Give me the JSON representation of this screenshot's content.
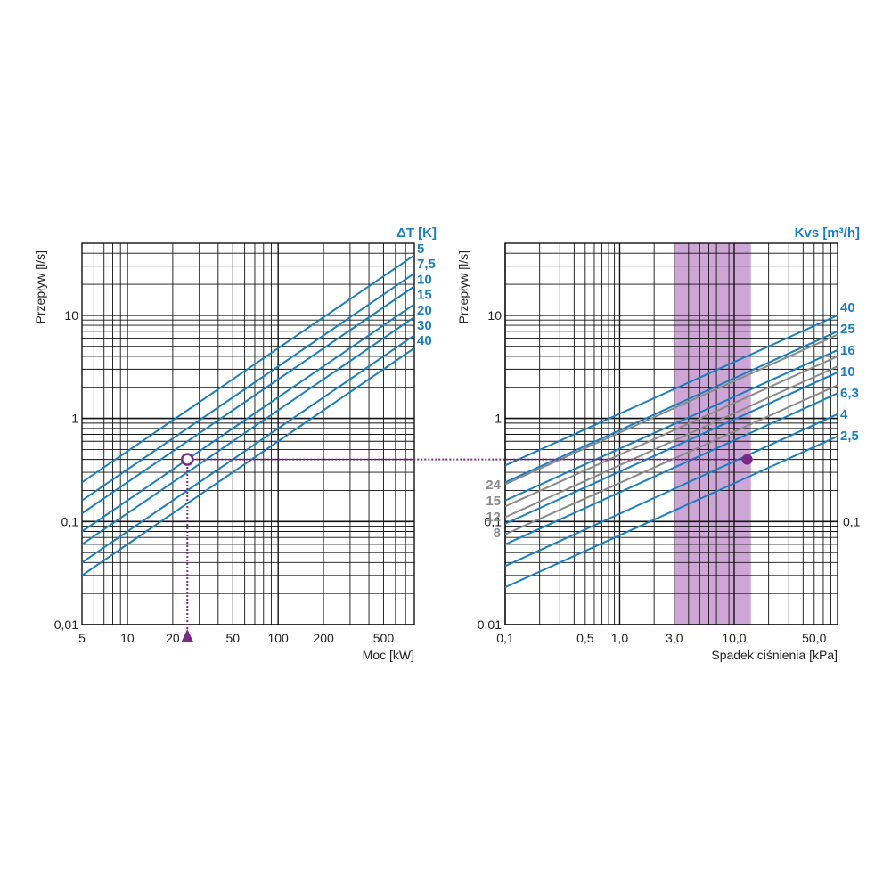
{
  "colors": {
    "blue": "#1a7fc1",
    "gray": "#8a8a8a",
    "purple": "#7a2a86",
    "band": "#c596cf",
    "grid": "#111111"
  },
  "chart_data": [
    {
      "type": "line",
      "scale": "log-log",
      "title": "ΔT [K]",
      "xlabel": "Moc [kW]",
      "ylabel": "Przepływ [l/s]",
      "xlim": [
        5,
        800
      ],
      "ylim": [
        0.01,
        50
      ],
      "grid": true,
      "xticks": [
        {
          "value": 5,
          "label": "5"
        },
        {
          "value": 10,
          "label": "10"
        },
        {
          "value": 20,
          "label": "20"
        },
        {
          "value": 50,
          "label": "50"
        },
        {
          "value": 100,
          "label": "100"
        },
        {
          "value": 200,
          "label": "200"
        },
        {
          "value": 500,
          "label": "500"
        }
      ],
      "yticks": [
        {
          "value": 0.01,
          "label": "0,01"
        },
        {
          "value": 0.1,
          "label": "0,1"
        },
        {
          "value": 1,
          "label": "1"
        },
        {
          "value": 10,
          "label": "10"
        }
      ],
      "series": [
        {
          "name": "5",
          "x": [
            5,
            800
          ],
          "y": [
            0.24,
            38.3
          ]
        },
        {
          "name": "7,5",
          "x": [
            5,
            800
          ],
          "y": [
            0.16,
            25.5
          ]
        },
        {
          "name": "10",
          "x": [
            5,
            800
          ],
          "y": [
            0.12,
            19.1
          ]
        },
        {
          "name": "15",
          "x": [
            5,
            800
          ],
          "y": [
            0.08,
            12.8
          ]
        },
        {
          "name": "20",
          "x": [
            5,
            800
          ],
          "y": [
            0.06,
            9.6
          ]
        },
        {
          "name": "30",
          "x": [
            5,
            800
          ],
          "y": [
            0.04,
            6.4
          ]
        },
        {
          "name": "40",
          "x": [
            5,
            800
          ],
          "y": [
            0.03,
            4.8
          ]
        }
      ],
      "marker": {
        "x": 25,
        "y": 0.4
      }
    },
    {
      "type": "line",
      "scale": "log-log",
      "title": "Kvs [m³/h]",
      "xlabel": "Spadek ciśnienia [kPa]",
      "ylabel": "Przepływ [l/s]",
      "xlim": [
        0.1,
        80
      ],
      "ylim": [
        0.01,
        50
      ],
      "grid": true,
      "xticks": [
        {
          "value": 0.1,
          "label": "0,1"
        },
        {
          "value": 0.5,
          "label": "0,5"
        },
        {
          "value": 1,
          "label": "1,0"
        },
        {
          "value": 3,
          "label": "3,0"
        },
        {
          "value": 10,
          "label": "10,0"
        },
        {
          "value": 50,
          "label": "50,0"
        }
      ],
      "yticks": [
        {
          "value": 0.01,
          "label": "0,01"
        },
        {
          "value": 0.1,
          "label": "0,1"
        },
        {
          "value": 1,
          "label": "1"
        },
        {
          "value": 10,
          "label": "10"
        }
      ],
      "right_yticks": [
        {
          "value": 0.1,
          "label": "0,1"
        }
      ],
      "shaded_x_range": [
        3,
        14
      ],
      "series": [
        {
          "name": "40",
          "style": "blue",
          "x": [
            0.1,
            80
          ],
          "y": [
            0.35,
            10
          ]
        },
        {
          "name": "25",
          "style": "blue",
          "x": [
            0.1,
            80
          ],
          "y": [
            0.24,
            7
          ]
        },
        {
          "name": "16",
          "style": "blue",
          "x": [
            0.1,
            80
          ],
          "y": [
            0.16,
            4.6
          ]
        },
        {
          "name": "10",
          "style": "blue",
          "x": [
            0.1,
            80
          ],
          "y": [
            0.095,
            2.8
          ]
        },
        {
          "name": "6,3",
          "style": "blue",
          "x": [
            0.1,
            80
          ],
          "y": [
            0.06,
            1.75
          ]
        },
        {
          "name": "4",
          "style": "blue",
          "x": [
            0.1,
            80
          ],
          "y": [
            0.037,
            1.1
          ]
        },
        {
          "name": "2,5",
          "style": "blue",
          "x": [
            0.1,
            80
          ],
          "y": [
            0.023,
            0.67
          ]
        },
        {
          "name": "24",
          "style": "gray",
          "x": [
            0.1,
            80
          ],
          "y": [
            0.23,
            6.5
          ]
        },
        {
          "name": "15",
          "style": "gray",
          "x": [
            0.1,
            80
          ],
          "y": [
            0.14,
            4.0
          ]
        },
        {
          "name": "12",
          "style": "gray",
          "x": [
            0.1,
            80
          ],
          "y": [
            0.11,
            3.2
          ]
        },
        {
          "name": "8",
          "style": "gray",
          "x": [
            0.1,
            80
          ],
          "y": [
            0.075,
            2.1
          ]
        }
      ],
      "marker": {
        "x": 13,
        "y": 0.4
      }
    }
  ]
}
